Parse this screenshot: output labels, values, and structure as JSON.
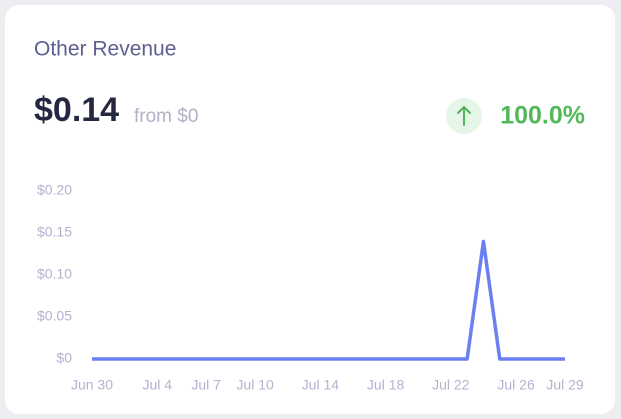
{
  "card": {
    "title": "Other Revenue",
    "value": "$0.14",
    "comparison": "from $0",
    "change": "100.0%"
  },
  "chart_data": {
    "type": "line",
    "categories": [
      "Jun 30",
      null,
      null,
      null,
      "Jul 4",
      null,
      null,
      "Jul 7",
      null,
      null,
      "Jul 10",
      null,
      null,
      null,
      "Jul 14",
      null,
      null,
      null,
      "Jul 18",
      null,
      null,
      null,
      "Jul 22",
      null,
      null,
      null,
      "Jul 26",
      null,
      null,
      "Jul 29"
    ],
    "values": [
      0,
      0,
      0,
      0,
      0,
      0,
      0,
      0,
      0,
      0,
      0,
      0,
      0,
      0,
      0,
      0,
      0,
      0,
      0,
      0,
      0,
      0,
      0,
      0,
      0.14,
      0,
      0,
      0,
      0,
      0
    ],
    "color": "#6b80f0",
    "ylim": [
      0,
      0.2
    ],
    "yticks": [
      {
        "value": 0,
        "label": "$0"
      },
      {
        "value": 0.05,
        "label": "$0.05"
      },
      {
        "value": 0.1,
        "label": "$0.10"
      },
      {
        "value": 0.15,
        "label": "$0.15"
      },
      {
        "value": 0.2,
        "label": "$0.20"
      }
    ],
    "grid": false
  }
}
